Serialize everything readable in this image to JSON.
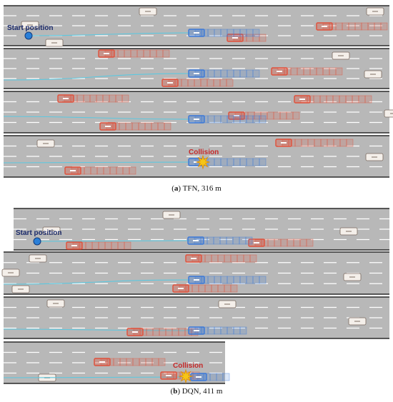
{
  "captions": {
    "a_letter": "a",
    "a_text": " TFN, 316 m",
    "b_letter": "b",
    "b_text": " DQN, 411 m"
  },
  "labels": {
    "start": "Start position",
    "collision": "Collision"
  },
  "colors": {
    "road": "#b8b8b8",
    "lane_marking": "#ffffff",
    "road_edge": "#2a2a2a",
    "ego": "#3a78d8",
    "adversary": "#e0503a",
    "trajectory": "#5cc8e0",
    "start_marker": "#2a7fd8",
    "label": "#1a2a6a",
    "collision_label": "#c62828",
    "collision_burst": "#f5c518"
  },
  "icons": [
    "start-marker",
    "collision-burst-icon"
  ]
}
